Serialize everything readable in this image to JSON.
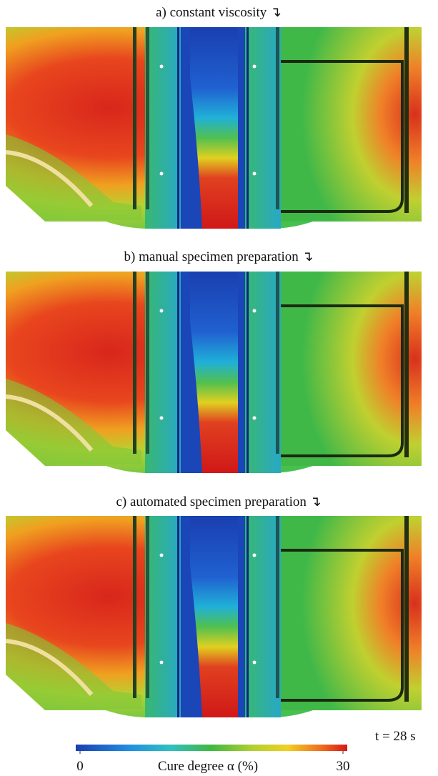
{
  "panels": [
    {
      "title": "a) constant viscosity ↴"
    },
    {
      "title": "b) manual specimen preparation ↴"
    },
    {
      "title": "c) automated specimen preparation ↴"
    }
  ],
  "colorbar": {
    "label": "Cure degree α (%)",
    "min": 0,
    "max": 30,
    "ticks": [
      0,
      30
    ]
  },
  "annotation": "t = 28 s"
}
